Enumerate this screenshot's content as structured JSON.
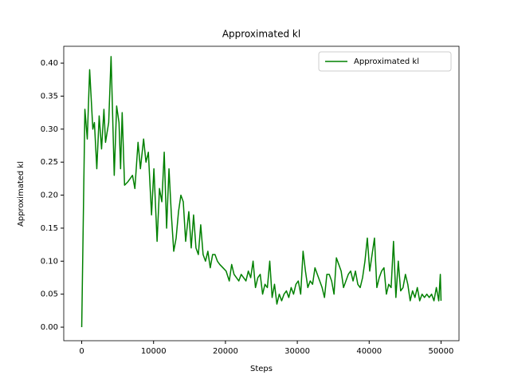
{
  "chart_data": {
    "type": "line",
    "title": "Approximated kl",
    "xlabel": "Steps",
    "ylabel": "Approximated kl",
    "x": [
      0,
      442,
      773,
      1104,
      1546,
      1766,
      2098,
      2429,
      2760,
      3091,
      3312,
      3754,
      4085,
      4526,
      4858,
      5189,
      5410,
      5630,
      5962,
      6403,
      6734,
      7066,
      7397,
      7838,
      8170,
      8611,
      8942,
      9274,
      9715,
      10046,
      10488,
      10819,
      11150,
      11482,
      11813,
      12144,
      12475,
      12806,
      13138,
      13469,
      13800,
      14131,
      14462,
      14904,
      15235,
      15566,
      15898,
      16229,
      16560,
      16891,
      17222,
      17554,
      17885,
      18216,
      18547,
      18878,
      19210,
      19651,
      20093,
      20534,
      20866,
      21197,
      21528,
      21859,
      22190,
      22522,
      22853,
      23184,
      23515,
      23846,
      24178,
      24509,
      24840,
      25171,
      25502,
      25834,
      26165,
      26496,
      26827,
      27158,
      27490,
      27821,
      28152,
      28483,
      28814,
      29146,
      29477,
      29808,
      30139,
      30470,
      30802,
      31133,
      31464,
      31795,
      32126,
      32458,
      32789,
      33120,
      33451,
      33782,
      34114,
      34445,
      34776,
      35107,
      35438,
      35770,
      36101,
      36432,
      36763,
      37094,
      37426,
      37757,
      38088,
      38419,
      38750,
      39082,
      39413,
      39744,
      40075,
      40406,
      40738,
      41069,
      41400,
      41731,
      42062,
      42394,
      42725,
      43056,
      43387,
      43718,
      44050,
      44381,
      44712,
      45043,
      45374,
      45706,
      46037,
      46368,
      46699,
      47030,
      47362,
      47693,
      48024,
      48355,
      48686,
      49018,
      49349,
      49680,
      49901,
      50000
    ],
    "series": [
      {
        "name": "Approximated kl",
        "color": "#008000",
        "values": [
          0,
          0.33,
          0.285,
          0.39,
          0.3,
          0.31,
          0.24,
          0.32,
          0.27,
          0.33,
          0.28,
          0.31,
          0.41,
          0.23,
          0.335,
          0.31,
          0.24,
          0.325,
          0.215,
          0.22,
          0.225,
          0.23,
          0.21,
          0.28,
          0.24,
          0.285,
          0.25,
          0.265,
          0.17,
          0.24,
          0.13,
          0.21,
          0.19,
          0.265,
          0.15,
          0.24,
          0.17,
          0.115,
          0.135,
          0.175,
          0.2,
          0.19,
          0.13,
          0.175,
          0.12,
          0.17,
          0.12,
          0.11,
          0.155,
          0.11,
          0.1,
          0.115,
          0.09,
          0.11,
          0.11,
          0.1,
          0.095,
          0.09,
          0.085,
          0.07,
          0.095,
          0.08,
          0.075,
          0.07,
          0.08,
          0.075,
          0.07,
          0.085,
          0.075,
          0.1,
          0.06,
          0.075,
          0.08,
          0.05,
          0.065,
          0.06,
          0.1,
          0.045,
          0.065,
          0.035,
          0.05,
          0.04,
          0.05,
          0.055,
          0.045,
          0.06,
          0.05,
          0.065,
          0.07,
          0.05,
          0.115,
          0.085,
          0.06,
          0.07,
          0.065,
          0.09,
          0.08,
          0.07,
          0.06,
          0.045,
          0.08,
          0.08,
          0.07,
          0.05,
          0.105,
          0.095,
          0.085,
          0.06,
          0.07,
          0.08,
          0.085,
          0.07,
          0.085,
          0.065,
          0.06,
          0.075,
          0.1,
          0.135,
          0.085,
          0.11,
          0.135,
          0.06,
          0.075,
          0.085,
          0.09,
          0.05,
          0.065,
          0.06,
          0.13,
          0.045,
          0.1,
          0.055,
          0.06,
          0.08,
          0.065,
          0.04,
          0.055,
          0.045,
          0.06,
          0.04,
          0.05,
          0.045,
          0.05,
          0.045,
          0.05,
          0.04,
          0.06,
          0.04,
          0.08,
          0.04
        ]
      }
    ],
    "xlim": [
      -2500,
      52500
    ],
    "ylim": [
      -0.0205,
      0.4255
    ],
    "xticks": [
      0,
      10000,
      20000,
      30000,
      40000,
      50000
    ],
    "yticks": [
      {
        "value": 0,
        "label": "0.00"
      },
      {
        "value": 0.05,
        "label": "0.05"
      },
      {
        "value": 0.1,
        "label": "0.10"
      },
      {
        "value": 0.15,
        "label": "0.15"
      },
      {
        "value": 0.2,
        "label": "0.20"
      },
      {
        "value": 0.25,
        "label": "0.25"
      },
      {
        "value": 0.3,
        "label": "0.30"
      },
      {
        "value": 0.35,
        "label": "0.35"
      },
      {
        "value": 0.4,
        "label": "0.40"
      }
    ],
    "legend": "upper right",
    "grid": false
  }
}
